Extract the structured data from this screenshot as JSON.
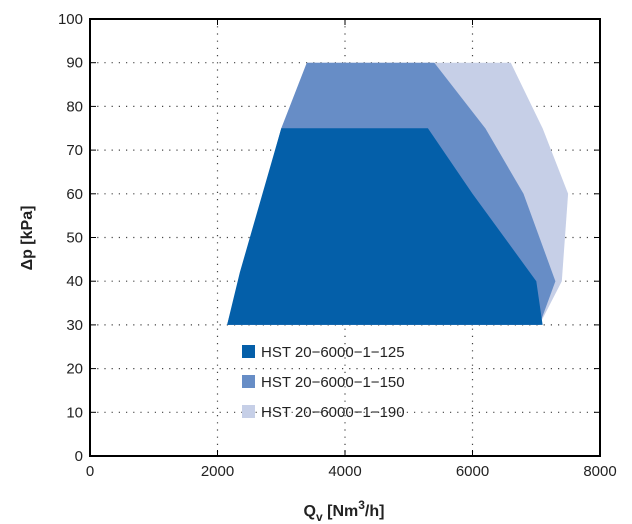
{
  "chart_data": {
    "type": "area",
    "xlim": [
      0,
      8000
    ],
    "ylim": [
      0,
      100
    ],
    "x_ticks": [
      "0",
      "2000",
      "4000",
      "6000",
      "8000"
    ],
    "y_ticks": [
      "0",
      "10",
      "20",
      "30",
      "40",
      "50",
      "60",
      "70",
      "80",
      "90",
      "100"
    ],
    "xlabel": {
      "main": "Q",
      "sub": "v",
      "rest1": " [Nm",
      "sup": "3",
      "rest2": "/h]"
    },
    "ylabel": "Δp [kPa]",
    "grid": true,
    "legend_position": "bottom-center",
    "series": [
      {
        "name": "HST 20−6000−1−190",
        "color": "#c6cfe7",
        "points": [
          [
            3000,
            75
          ],
          [
            3400,
            90
          ],
          [
            6600,
            90
          ],
          [
            7100,
            75
          ],
          [
            7500,
            60
          ],
          [
            7400,
            40
          ],
          [
            7050,
            30
          ],
          [
            2150,
            30
          ]
        ]
      },
      {
        "name": "HST 20−6000−1−150",
        "color": "#678dc6",
        "points": [
          [
            3000,
            75
          ],
          [
            3400,
            90
          ],
          [
            5400,
            90
          ],
          [
            6200,
            75
          ],
          [
            6800,
            60
          ],
          [
            7300,
            40
          ],
          [
            7050,
            30
          ],
          [
            2150,
            30
          ]
        ]
      },
      {
        "name": "HST 20−6000−1−125",
        "color": "#045fa9",
        "points": [
          [
            3000,
            75
          ],
          [
            5300,
            75
          ],
          [
            6000,
            60
          ],
          [
            7000,
            40
          ],
          [
            7100,
            30
          ],
          [
            2150,
            30
          ],
          [
            2350,
            42
          ]
        ]
      }
    ]
  }
}
